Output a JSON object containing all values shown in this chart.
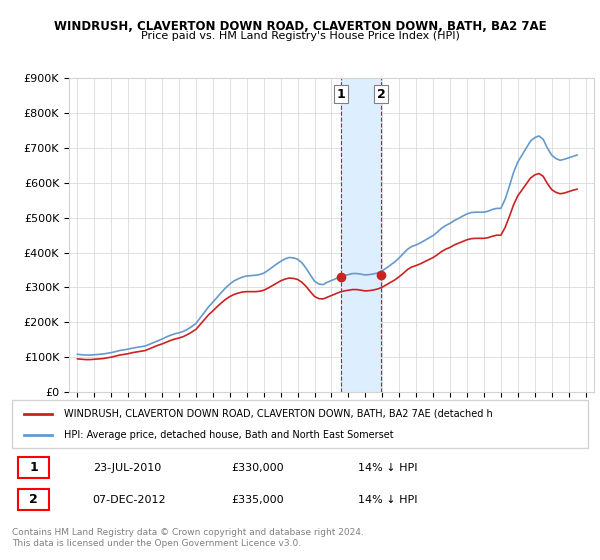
{
  "title": "WINDRUSH, CLAVERTON DOWN ROAD, CLAVERTON DOWN, BATH, BA2 7AE",
  "subtitle": "Price paid vs. HM Land Registry's House Price Index (HPI)",
  "legend_line1": "WINDRUSH, CLAVERTON DOWN ROAD, CLAVERTON DOWN, BATH, BA2 7AE (detached h",
  "legend_line2": "HPI: Average price, detached house, Bath and North East Somerset",
  "footer": "Contains HM Land Registry data © Crown copyright and database right 2024.\nThis data is licensed under the Open Government Licence v3.0.",
  "transaction1_label": "1",
  "transaction1_date": "23-JUL-2010",
  "transaction1_price": "£330,000",
  "transaction1_hpi": "14% ↓ HPI",
  "transaction2_label": "2",
  "transaction2_date": "07-DEC-2012",
  "transaction2_price": "£335,000",
  "transaction2_hpi": "14% ↓ HPI",
  "hpi_color": "#6699cc",
  "price_color": "#cc2222",
  "marker_color": "#cc2222",
  "shade_color": "#ddeeff",
  "transaction1_year": 2010.55,
  "transaction2_year": 2012.92,
  "ylim": [
    0,
    900000
  ],
  "yticks": [
    0,
    100000,
    200000,
    300000,
    400000,
    500000,
    600000,
    700000,
    800000,
    900000
  ],
  "ytick_labels": [
    "£0",
    "£100K",
    "£200K",
    "£300K",
    "£400K",
    "£500K",
    "£600K",
    "£700K",
    "£800K",
    "£900K"
  ],
  "xlim_start": 1994.5,
  "xlim_end": 2025.5,
  "xtick_years": [
    1995,
    1996,
    1997,
    1998,
    1999,
    2000,
    2001,
    2002,
    2003,
    2004,
    2005,
    2006,
    2007,
    2008,
    2009,
    2010,
    2011,
    2012,
    2013,
    2014,
    2015,
    2016,
    2017,
    2018,
    2019,
    2020,
    2021,
    2022,
    2023,
    2024,
    2025
  ],
  "hpi_data": {
    "years": [
      1995.0,
      1995.25,
      1995.5,
      1995.75,
      1996.0,
      1996.25,
      1996.5,
      1996.75,
      1997.0,
      1997.25,
      1997.5,
      1997.75,
      1998.0,
      1998.25,
      1998.5,
      1998.75,
      1999.0,
      1999.25,
      1999.5,
      1999.75,
      2000.0,
      2000.25,
      2000.5,
      2000.75,
      2001.0,
      2001.25,
      2001.5,
      2001.75,
      2002.0,
      2002.25,
      2002.5,
      2002.75,
      2003.0,
      2003.25,
      2003.5,
      2003.75,
      2004.0,
      2004.25,
      2004.5,
      2004.75,
      2005.0,
      2005.25,
      2005.5,
      2005.75,
      2006.0,
      2006.25,
      2006.5,
      2006.75,
      2007.0,
      2007.25,
      2007.5,
      2007.75,
      2008.0,
      2008.25,
      2008.5,
      2008.75,
      2009.0,
      2009.25,
      2009.5,
      2009.75,
      2010.0,
      2010.25,
      2010.5,
      2010.75,
      2011.0,
      2011.25,
      2011.5,
      2011.75,
      2012.0,
      2012.25,
      2012.5,
      2012.75,
      2013.0,
      2013.25,
      2013.5,
      2013.75,
      2014.0,
      2014.25,
      2014.5,
      2014.75,
      2015.0,
      2015.25,
      2015.5,
      2015.75,
      2016.0,
      2016.25,
      2016.5,
      2016.75,
      2017.0,
      2017.25,
      2017.5,
      2017.75,
      2018.0,
      2018.25,
      2018.5,
      2018.75,
      2019.0,
      2019.25,
      2019.5,
      2019.75,
      2020.0,
      2020.25,
      2020.5,
      2020.75,
      2021.0,
      2021.25,
      2021.5,
      2021.75,
      2022.0,
      2022.25,
      2022.5,
      2022.75,
      2023.0,
      2023.25,
      2023.5,
      2023.75,
      2024.0,
      2024.25,
      2024.5
    ],
    "values": [
      108000,
      107000,
      106000,
      106000,
      107000,
      108000,
      109000,
      111000,
      113000,
      116000,
      119000,
      121000,
      123000,
      126000,
      128000,
      130000,
      132000,
      137000,
      142000,
      147000,
      152000,
      158000,
      163000,
      167000,
      170000,
      174000,
      180000,
      188000,
      197000,
      213000,
      229000,
      245000,
      258000,
      272000,
      286000,
      299000,
      310000,
      319000,
      325000,
      330000,
      333000,
      334000,
      335000,
      337000,
      341000,
      349000,
      358000,
      367000,
      375000,
      382000,
      386000,
      385000,
      381000,
      371000,
      355000,
      336000,
      318000,
      310000,
      308000,
      315000,
      320000,
      325000,
      331000,
      334000,
      337000,
      340000,
      340000,
      338000,
      336000,
      337000,
      339000,
      342000,
      348000,
      356000,
      365000,
      374000,
      385000,
      398000,
      410000,
      418000,
      422000,
      428000,
      435000,
      442000,
      449000,
      459000,
      470000,
      478000,
      484000,
      492000,
      498000,
      505000,
      511000,
      515000,
      516000,
      516000,
      516000,
      519000,
      524000,
      527000,
      527000,
      553000,
      590000,
      630000,
      660000,
      680000,
      700000,
      720000,
      730000,
      735000,
      725000,
      700000,
      680000,
      670000,
      665000,
      668000,
      672000,
      676000,
      680000
    ]
  },
  "price_data": {
    "years": [
      1995.0,
      1995.25,
      1995.5,
      1995.75,
      1996.0,
      1996.25,
      1996.5,
      1996.75,
      1997.0,
      1997.25,
      1997.5,
      1997.75,
      1998.0,
      1998.25,
      1998.5,
      1998.75,
      1999.0,
      1999.25,
      1999.5,
      1999.75,
      2000.0,
      2000.25,
      2000.5,
      2000.75,
      2001.0,
      2001.25,
      2001.5,
      2001.75,
      2002.0,
      2002.25,
      2002.5,
      2002.75,
      2003.0,
      2003.25,
      2003.5,
      2003.75,
      2004.0,
      2004.25,
      2004.5,
      2004.75,
      2005.0,
      2005.25,
      2005.5,
      2005.75,
      2006.0,
      2006.25,
      2006.5,
      2006.75,
      2007.0,
      2007.25,
      2007.5,
      2007.75,
      2008.0,
      2008.25,
      2008.5,
      2008.75,
      2009.0,
      2009.25,
      2009.5,
      2009.75,
      2010.0,
      2010.25,
      2010.5,
      2010.75,
      2011.0,
      2011.25,
      2011.5,
      2011.75,
      2012.0,
      2012.25,
      2012.5,
      2012.75,
      2013.0,
      2013.25,
      2013.5,
      2013.75,
      2014.0,
      2014.25,
      2014.5,
      2014.75,
      2015.0,
      2015.25,
      2015.5,
      2015.75,
      2016.0,
      2016.25,
      2016.5,
      2016.75,
      2017.0,
      2017.25,
      2017.5,
      2017.75,
      2018.0,
      2018.25,
      2018.5,
      2018.75,
      2019.0,
      2019.25,
      2019.5,
      2019.75,
      2020.0,
      2020.25,
      2020.5,
      2020.75,
      2021.0,
      2021.25,
      2021.5,
      2021.75,
      2022.0,
      2022.25,
      2022.5,
      2022.75,
      2023.0,
      2023.25,
      2023.5,
      2023.75,
      2024.0,
      2024.25,
      2024.5
    ],
    "values": [
      95000,
      94000,
      93000,
      93000,
      94000,
      95000,
      96000,
      98000,
      100000,
      103000,
      106000,
      108000,
      110000,
      113000,
      115000,
      117000,
      119000,
      124000,
      129000,
      134000,
      138000,
      143000,
      148000,
      152000,
      155000,
      159000,
      165000,
      172000,
      180000,
      194000,
      208000,
      222000,
      233000,
      245000,
      256000,
      266000,
      274000,
      280000,
      284000,
      287000,
      288000,
      288000,
      288000,
      289000,
      292000,
      298000,
      305000,
      312000,
      319000,
      324000,
      327000,
      326000,
      323000,
      315000,
      303000,
      288000,
      274000,
      268000,
      267000,
      272000,
      277000,
      282000,
      287000,
      290000,
      292000,
      294000,
      294000,
      292000,
      290000,
      291000,
      293000,
      296000,
      301000,
      308000,
      315000,
      322000,
      331000,
      341000,
      352000,
      359000,
      363000,
      368000,
      374000,
      380000,
      386000,
      394000,
      403000,
      410000,
      415000,
      422000,
      427000,
      432000,
      437000,
      440000,
      441000,
      441000,
      441000,
      443000,
      447000,
      450000,
      450000,
      472000,
      503000,
      537000,
      563000,
      580000,
      597000,
      614000,
      623000,
      627000,
      619000,
      598000,
      581000,
      573000,
      569000,
      571000,
      575000,
      579000,
      582000
    ]
  }
}
